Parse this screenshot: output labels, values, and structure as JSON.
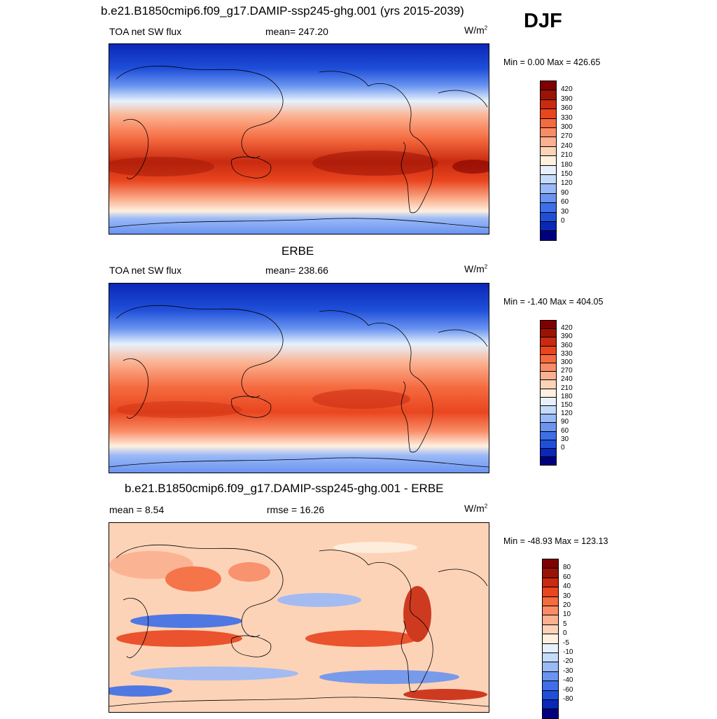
{
  "season": "DJF",
  "colors": {
    "sw": [
      "#00007f",
      "#0a27b8",
      "#1f4fd9",
      "#3e6fe8",
      "#6a94f0",
      "#9ab9f7",
      "#c4dbfb",
      "#e6f1fd",
      "#fff0e0",
      "#fdd3b8",
      "#fbb190",
      "#f98c66",
      "#f56a3f",
      "#e9461f",
      "#c92a10",
      "#9b1305",
      "#7f0000"
    ],
    "diff": [
      "#00007f",
      "#0a27b8",
      "#1f4fd9",
      "#3e6fe8",
      "#6a94f0",
      "#9ab9f7",
      "#c4dbfb",
      "#e6f1fd",
      "#fff0e0",
      "#fdd3b8",
      "#fbb190",
      "#f98c66",
      "#f56a3f",
      "#e9461f",
      "#c92a10",
      "#9b1305",
      "#7f0000"
    ]
  },
  "panels": [
    {
      "title": "b.e21.B1850cmip6.f09_g17.DAMIP-ssp245-ghg.001 (yrs 2015-2039)",
      "left_label": "TOA net SW flux",
      "center_label": "mean= 247.20",
      "units": "W/m",
      "units_exp": "2",
      "minmax": "Min =   0.00 Max = 426.65",
      "colorbar_ticks": [
        "420",
        "390",
        "360",
        "330",
        "300",
        "270",
        "240",
        "210",
        "180",
        "150",
        "120",
        "90",
        "60",
        "30",
        "0"
      ]
    },
    {
      "title": "ERBE",
      "left_label": "TOA net SW flux",
      "center_label": "mean= 238.66",
      "units": "W/m",
      "units_exp": "2",
      "minmax": "Min =  -1.40 Max = 404.05",
      "colorbar_ticks": [
        "420",
        "390",
        "360",
        "330",
        "300",
        "270",
        "240",
        "210",
        "180",
        "150",
        "120",
        "90",
        "60",
        "30",
        "0"
      ]
    },
    {
      "title": "b.e21.B1850cmip6.f09_g17.DAMIP-ssp245-ghg.001 - ERBE",
      "left_label": "mean =   8.54",
      "center_label": "rmse =  16.26",
      "units": "W/m",
      "units_exp": "2",
      "minmax": "Min = -48.93 Max = 123.13",
      "colorbar_ticks": [
        "80",
        "60",
        "40",
        "30",
        "20",
        "10",
        "5",
        "0",
        "-5",
        "-10",
        "-20",
        "-30",
        "-40",
        "-60",
        "-80"
      ]
    }
  ]
}
